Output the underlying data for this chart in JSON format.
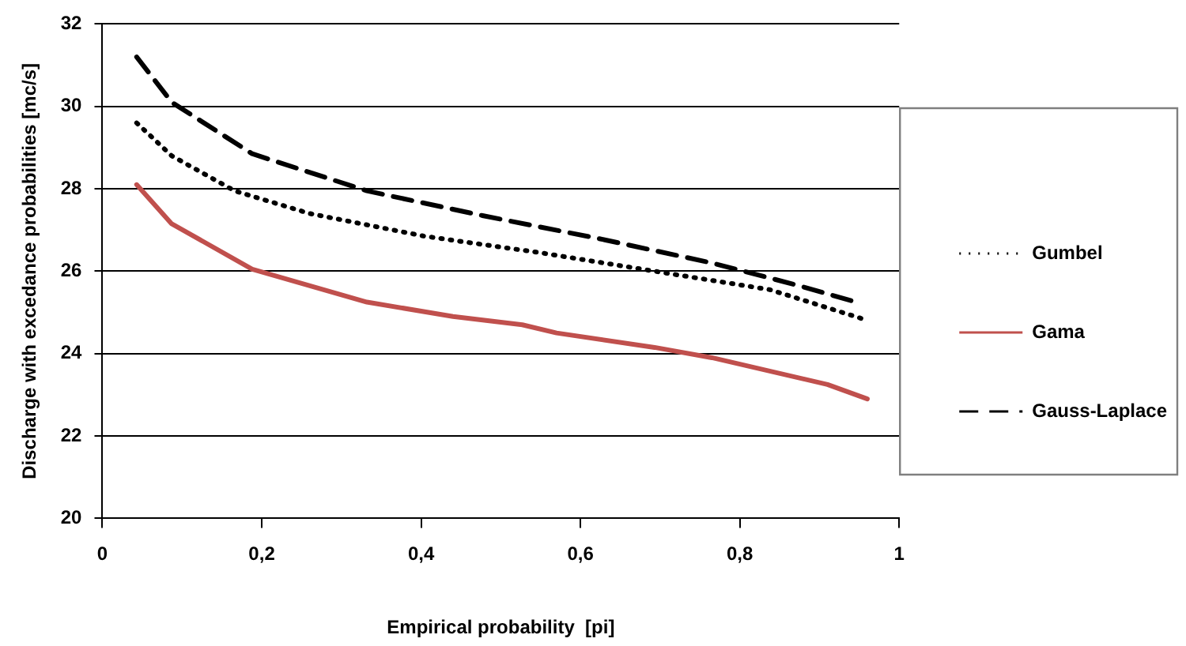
{
  "chart_data": {
    "type": "line",
    "xlabel": "Empirical probability  [pi]",
    "ylabel": "Discharge with excedance probabilities [mc/s]",
    "xlim": [
      0,
      1
    ],
    "xticks": [
      0,
      {
        "value": 0.2,
        "label": "0,2"
      },
      {
        "value": 0.4,
        "label": "0,4"
      },
      {
        "value": 0.6,
        "label": "0,6"
      },
      {
        "value": 0.8,
        "label": "0,8"
      },
      1
    ],
    "ylim": [
      20,
      32
    ],
    "yticks": [
      20,
      22,
      24,
      26,
      28,
      30,
      32
    ],
    "grid": "y",
    "legend": "right",
    "marker": "none",
    "series": [
      {
        "name": "Gumbel",
        "color": "#000000",
        "line_style": "dotted",
        "x": [
          0.043,
          0.087,
          0.166,
          0.26,
          0.404,
          0.549,
          0.693,
          0.838,
          0.953
        ],
        "values": [
          29.6,
          28.8,
          27.95,
          27.4,
          26.85,
          26.45,
          26.0,
          25.55,
          24.85
        ]
      },
      {
        "name": "Gama",
        "color": "#c0504d",
        "line_style": "solid",
        "x": [
          0.043,
          0.087,
          0.188,
          0.332,
          0.44,
          0.527,
          0.57,
          0.693,
          0.765,
          0.91,
          0.96
        ],
        "values": [
          28.1,
          27.15,
          26.05,
          25.25,
          24.9,
          24.7,
          24.5,
          24.15,
          23.9,
          23.25,
          22.9
        ]
      },
      {
        "name": "Gauss-Laplace",
        "color": "#000000",
        "line_style": "dashed",
        "x": [
          0.043,
          0.087,
          0.188,
          0.332,
          0.477,
          0.621,
          0.765,
          0.874,
          0.946
        ],
        "values": [
          31.2,
          30.1,
          28.85,
          27.95,
          27.35,
          26.8,
          26.2,
          25.65,
          25.25
        ]
      }
    ]
  }
}
